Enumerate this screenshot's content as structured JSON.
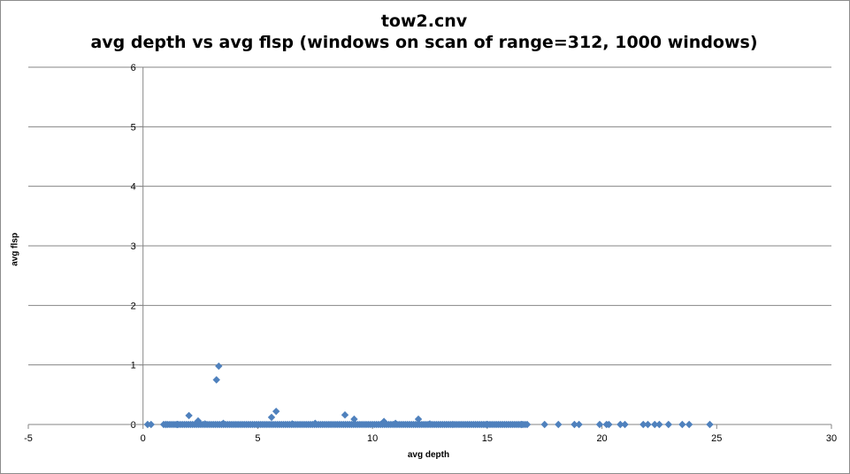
{
  "chart_data": {
    "type": "scatter",
    "title": "tow2.cnv",
    "subtitle": "avg depth vs avg flsp (windows on scan of range=312, 1000 windows)",
    "xlabel": "avg depth",
    "ylabel": "avg flsp",
    "xlim": [
      -5,
      30
    ],
    "ylim": [
      0,
      6
    ],
    "xticks": [
      -5,
      0,
      5,
      10,
      15,
      20,
      25,
      30
    ],
    "yticks": [
      0,
      1,
      2,
      3,
      4,
      5,
      6
    ],
    "grid": "horizontal",
    "legend": "none",
    "marker": "diamond",
    "color": "#4f81bd",
    "series": [
      {
        "points": [
          [
            0.2,
            0.0
          ],
          [
            0.35,
            0.0
          ],
          [
            1.0,
            0.0
          ],
          [
            1.5,
            0.0
          ],
          [
            2.0,
            0.15
          ],
          [
            2.4,
            0.06
          ],
          [
            2.7,
            0.01
          ],
          [
            3.2,
            0.75
          ],
          [
            3.3,
            0.98
          ],
          [
            3.5,
            0.02
          ],
          [
            5.6,
            0.12
          ],
          [
            5.8,
            0.22
          ],
          [
            6.5,
            0.01
          ],
          [
            7.5,
            0.02
          ],
          [
            8.8,
            0.16
          ],
          [
            9.2,
            0.09
          ],
          [
            10.5,
            0.05
          ],
          [
            11.0,
            0.02
          ],
          [
            12.0,
            0.09
          ],
          [
            12.5,
            0.01
          ],
          [
            13.5,
            0.0
          ],
          [
            15.0,
            0.0
          ],
          [
            16.5,
            0.0
          ],
          [
            17.5,
            0.0
          ],
          [
            18.1,
            0.0
          ],
          [
            18.8,
            0.0
          ],
          [
            19.0,
            0.0
          ],
          [
            19.9,
            0.0
          ],
          [
            20.2,
            0.0
          ],
          [
            20.3,
            0.0
          ],
          [
            20.8,
            0.0
          ],
          [
            21.0,
            0.0
          ],
          [
            21.8,
            0.0
          ],
          [
            22.0,
            0.0
          ],
          [
            22.3,
            0.0
          ],
          [
            22.5,
            0.0
          ],
          [
            22.9,
            0.0
          ],
          [
            23.5,
            0.0
          ],
          [
            23.8,
            0.0
          ],
          [
            24.7,
            0.0
          ]
        ]
      }
    ]
  }
}
